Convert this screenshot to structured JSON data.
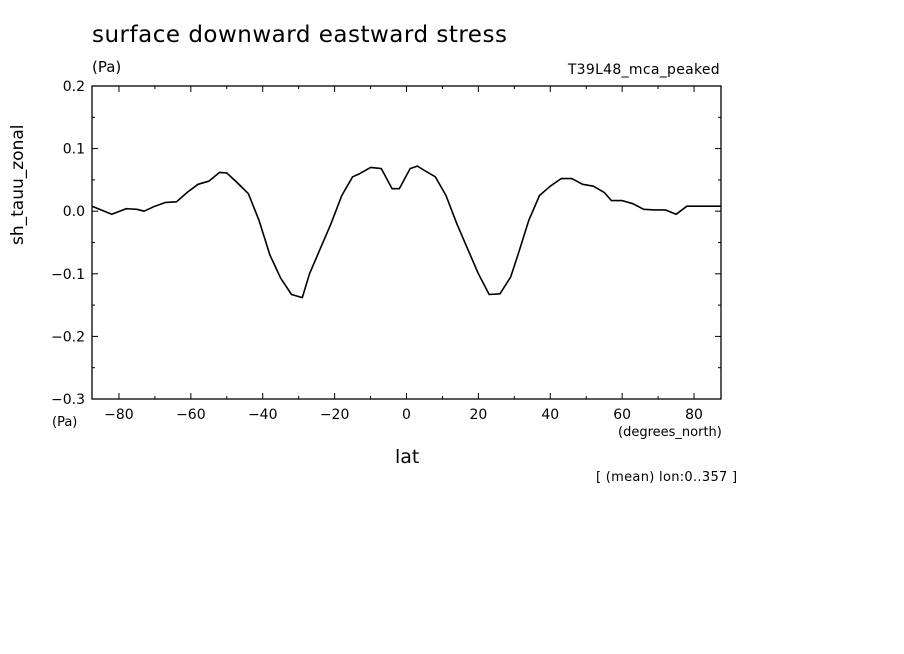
{
  "figure": {
    "title": "surface downward eastward stress",
    "units_top": "(Pa)",
    "run_label": "T39L48_mca_peaked",
    "units_bottom": "(Pa)",
    "x_units": "(degrees_north)",
    "footnote": "[ (mean) lon:0..357 ]"
  },
  "chart_data": {
    "type": "line",
    "title": "surface downward eastward stress",
    "xlabel": "lat",
    "ylabel": "sh_tauu_zonal",
    "xlim": [
      -87.5,
      87.5
    ],
    "ylim": [
      -0.3,
      0.2
    ],
    "x_ticks": [
      -80,
      -60,
      -40,
      -20,
      0,
      20,
      40,
      60,
      80
    ],
    "x_tick_labels": [
      "−80",
      "−60",
      "−40",
      "−20",
      "0",
      "20",
      "40",
      "60",
      "80"
    ],
    "y_ticks": [
      0.2,
      0.1,
      0.0,
      -0.1,
      -0.2,
      -0.3
    ],
    "y_tick_labels": [
      "0.2",
      "0.1",
      "0.0",
      "−0.1",
      "−0.2",
      "−0.3"
    ],
    "grid": false,
    "line_color": "#000000",
    "series": [
      {
        "x": [
          -87.5,
          -82,
          -78,
          -75,
          -73,
          -70,
          -67,
          -64,
          -61,
          -58,
          -55,
          -52,
          -50,
          -47,
          -44,
          -41,
          -38,
          -35,
          -32,
          -29,
          -27,
          -24,
          -21,
          -18,
          -15,
          -13,
          -10,
          -7,
          -4,
          -2,
          1,
          3,
          5,
          8,
          11,
          14,
          17,
          20,
          23,
          26,
          29,
          31,
          34,
          37,
          40,
          43,
          46,
          49,
          52,
          55,
          57,
          60,
          63,
          66,
          69,
          72,
          75,
          78,
          81,
          84,
          87.5
        ],
        "values": [
          0.008,
          -0.005,
          0.004,
          0.003,
          0.0,
          0.008,
          0.014,
          0.015,
          0.03,
          0.043,
          0.048,
          0.062,
          0.061,
          0.045,
          0.028,
          -0.015,
          -0.07,
          -0.107,
          -0.133,
          -0.138,
          -0.1,
          -0.06,
          -0.02,
          0.025,
          0.055,
          0.06,
          0.07,
          0.068,
          0.036,
          0.036,
          0.068,
          0.072,
          0.065,
          0.055,
          0.025,
          -0.02,
          -0.06,
          -0.1,
          -0.133,
          -0.132,
          -0.105,
          -0.07,
          -0.015,
          0.025,
          0.04,
          0.052,
          0.052,
          0.043,
          0.04,
          0.03,
          0.017,
          0.017,
          0.012,
          0.003,
          0.002,
          0.002,
          -0.005,
          0.008,
          0.008,
          0.008,
          0.008
        ]
      }
    ]
  }
}
